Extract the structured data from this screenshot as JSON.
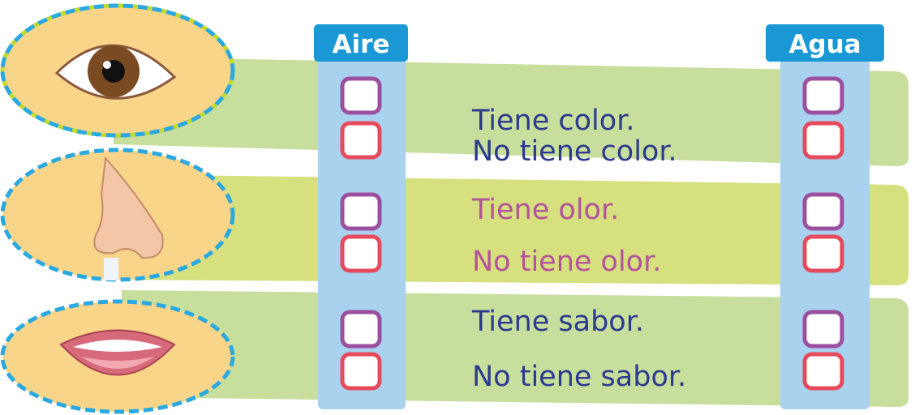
{
  "columns": [
    "Aire",
    "Agua"
  ],
  "groups": [
    {
      "statements": [
        "Tiene color.",
        "No tiene color."
      ]
    },
    {
      "statements": [
        "Tiene olor.",
        "No tiene olor."
      ]
    },
    {
      "statements": [
        "Tiene sabor.",
        "No tiene sabor."
      ]
    }
  ]
}
